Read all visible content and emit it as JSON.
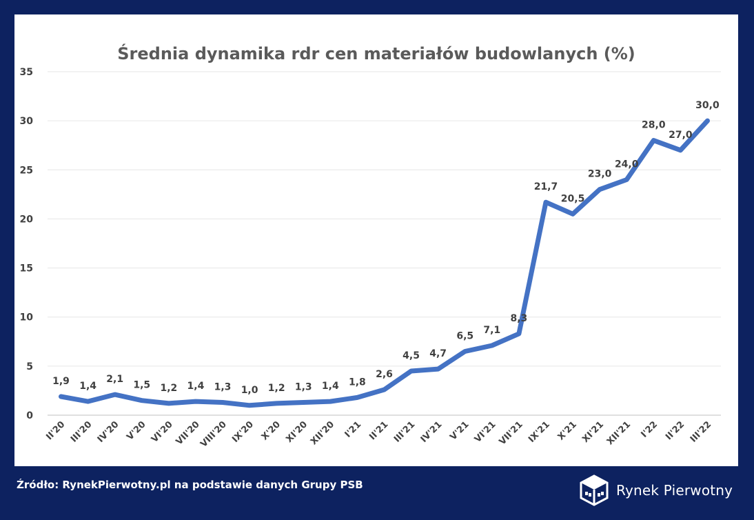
{
  "source": "Źródło: RynekPierwotny.pl na podstawie danych Grupy PSB",
  "brand": {
    "name": "Rynek Pierwotny"
  },
  "colors": {
    "background": "#0d2260",
    "line": "#4472c4",
    "grid": "#e6e6e6",
    "label": "#404040"
  },
  "chart_data": {
    "type": "line",
    "title": "Średnia dynamika rdr cen materiałów budowlanych (%)",
    "xlabel": "",
    "ylabel": "",
    "ylim": [
      0,
      35
    ],
    "yticks": [
      "0",
      "5",
      "10",
      "15",
      "20",
      "25",
      "30",
      "35"
    ],
    "grid": true,
    "categories": [
      "II'20",
      "III'20",
      "IV'20",
      "V'20",
      "VI'20",
      "VII'20",
      "VIII'20",
      "IX'20",
      "X'20",
      "XI'20",
      "XII'20",
      "I'21",
      "II'21",
      "III'21",
      "IV'21",
      "V'21",
      "VI'21",
      "VII'21",
      "IX'21",
      "X'21",
      "XI'21",
      "XII'21",
      "I'22",
      "II'22",
      "III'22"
    ],
    "series": [
      {
        "values": [
          1.9,
          1.4,
          2.1,
          1.5,
          1.2,
          1.4,
          1.3,
          1.0,
          1.2,
          1.3,
          1.4,
          1.8,
          2.6,
          4.5,
          4.7,
          6.5,
          7.1,
          8.3,
          21.7,
          20.5,
          23.0,
          24.0,
          28.0,
          27.0,
          30.0
        ],
        "labels": [
          "1,9",
          "1,4",
          "2,1",
          "1,5",
          "1,2",
          "1,4",
          "1,3",
          "1,0",
          "1,2",
          "1,3",
          "1,4",
          "1,8",
          "2,6",
          "4,5",
          "4,7",
          "6,5",
          "7,1",
          "8,3",
          "21,7",
          "20,5",
          "23,0",
          "24,0",
          "28,0",
          "27,0",
          "30,0"
        ]
      }
    ]
  }
}
